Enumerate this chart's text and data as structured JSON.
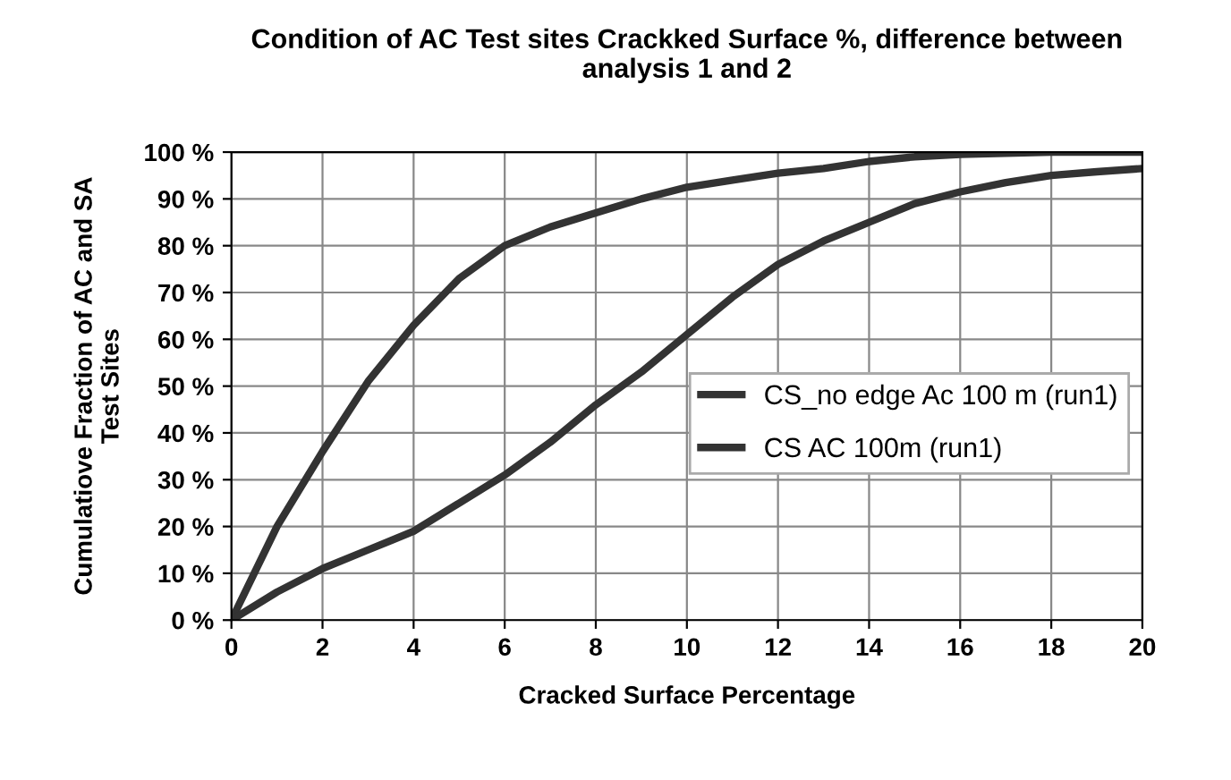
{
  "chart_data": {
    "type": "line",
    "title": "Condition of AC Test sites Crackked Surface %, difference between\nanalysis 1 and 2",
    "xlabel": "Cracked Surface Percentage",
    "ylabel": "Cumulatiove Fraction of AC and SA\nTest Sites",
    "series": [
      {
        "name": "CS_no edge Ac 100 m (run1)",
        "color": "#333333",
        "x": [
          0,
          1,
          2,
          3,
          4,
          5,
          6,
          7,
          8,
          9,
          10,
          11,
          12,
          13,
          14,
          15,
          16,
          18,
          20
        ],
        "values": [
          0,
          20,
          36,
          51,
          63,
          73,
          80,
          84,
          87,
          90,
          92.5,
          94,
          95.5,
          96.5,
          98,
          99,
          99.5,
          100,
          100
        ]
      },
      {
        "name": "CS AC 100m (run1)",
        "color": "#333333",
        "x": [
          0,
          1,
          2,
          3,
          3.5,
          4,
          5,
          6,
          7,
          8,
          9,
          10,
          11,
          12,
          13,
          14,
          15,
          16,
          17,
          18,
          19,
          20
        ],
        "values": [
          0,
          6,
          11,
          15,
          17,
          19,
          25,
          31,
          38,
          46,
          53,
          61,
          69,
          76,
          81,
          85,
          89,
          91.5,
          93.5,
          95,
          95.8,
          96.5
        ]
      }
    ],
    "xlim": [
      0,
      20
    ],
    "xticks": [
      0,
      2,
      4,
      6,
      8,
      10,
      12,
      14,
      16,
      18,
      20
    ],
    "ylim": [
      0,
      100
    ],
    "yticks": [
      {
        "value": 0,
        "label": "0 %"
      },
      {
        "value": 10,
        "label": "10 %"
      },
      {
        "value": 20,
        "label": "20 %"
      },
      {
        "value": 30,
        "label": "30 %"
      },
      {
        "value": 40,
        "label": "40 %"
      },
      {
        "value": 50,
        "label": "50 %"
      },
      {
        "value": 60,
        "label": "60 %"
      },
      {
        "value": 70,
        "label": "70 %"
      },
      {
        "value": 80,
        "label": "80 %"
      },
      {
        "value": 90,
        "label": "90 %"
      },
      {
        "value": 100,
        "label": "100 %"
      }
    ],
    "grid": true,
    "legend": "center right",
    "marker": "none",
    "line_style": "solid"
  }
}
